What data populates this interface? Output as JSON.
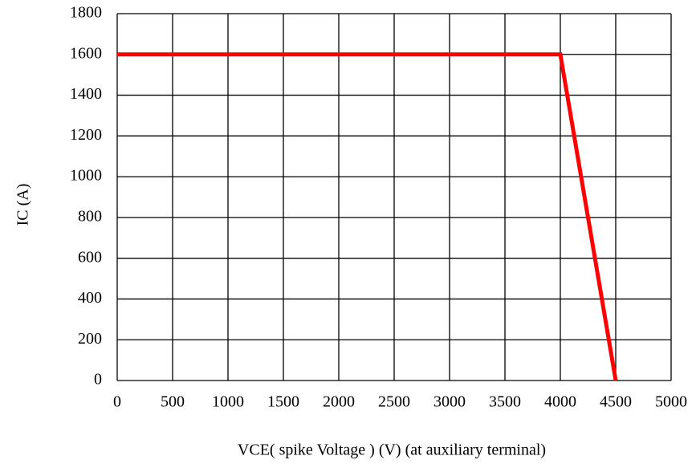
{
  "chart_data": {
    "type": "line",
    "x": [
      0,
      4000,
      4500
    ],
    "values": [
      1600,
      1600,
      0
    ],
    "color": "#ff0000",
    "xlim": [
      0,
      5000
    ],
    "xticks": [
      0,
      500,
      1000,
      1500,
      2000,
      2500,
      3000,
      3500,
      4000,
      4500,
      5000
    ],
    "ylim": [
      0,
      1800
    ],
    "yticks": [
      0,
      200,
      400,
      600,
      800,
      1000,
      1200,
      1400,
      1600,
      1800
    ],
    "xlabel": "VCE( spike Voltage ) (V) (at auxiliary terminal)",
    "ylabel": "IC (A)",
    "grid": true
  }
}
